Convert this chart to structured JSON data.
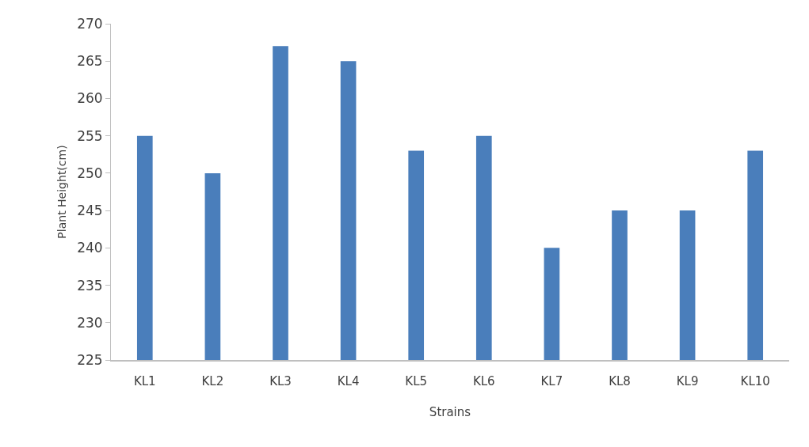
{
  "chart_data": {
    "type": "bar",
    "xlabel": "Strains",
    "ylabel": "Plant Height(cm)",
    "categories": [
      "KL1",
      "KL2",
      "KL3",
      "KL4",
      "KL5",
      "KL6",
      "KL7",
      "KL8",
      "KL9",
      "KL10"
    ],
    "values": [
      255,
      250,
      267,
      265,
      253,
      255,
      240,
      245,
      245,
      253
    ],
    "color": "#4a7ebb",
    "ylim": [
      225,
      270
    ],
    "yticks": [
      225,
      230,
      235,
      240,
      245,
      250,
      255,
      260,
      265,
      270
    ],
    "grid": false
  }
}
